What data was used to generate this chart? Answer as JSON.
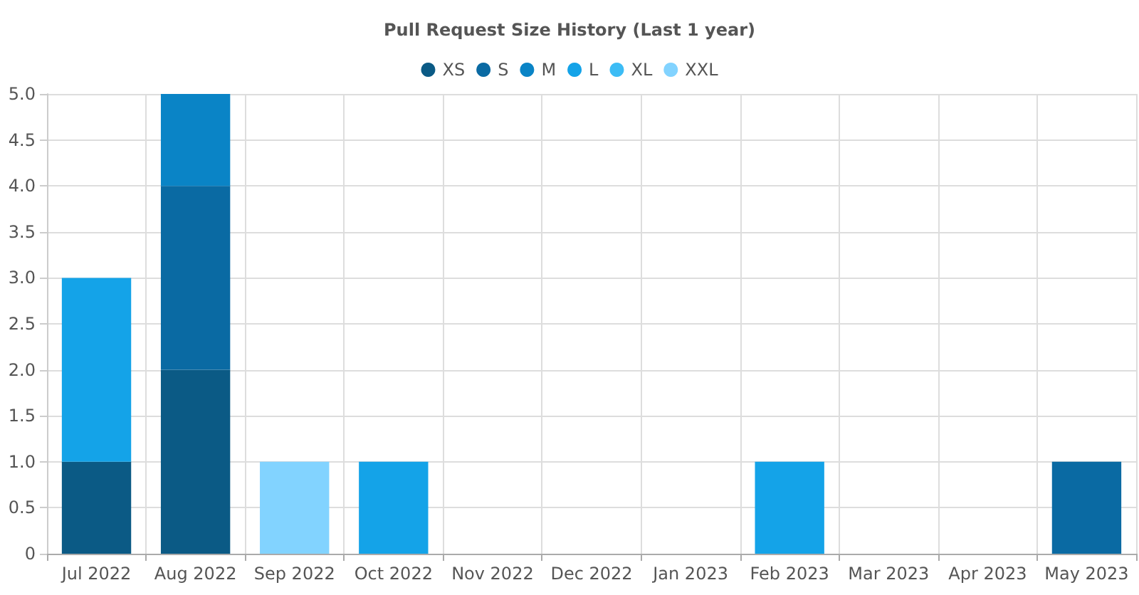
{
  "chart_data": {
    "type": "bar",
    "title": "Pull Request Size History (Last 1 year)",
    "stacked": true,
    "grid": true,
    "legend": "top",
    "categories": [
      "Jul 2022",
      "Aug 2022",
      "Sep 2022",
      "Oct 2022",
      "Nov 2022",
      "Dec 2022",
      "Jan 2023",
      "Feb 2023",
      "Mar 2023",
      "Apr 2023",
      "May 2023"
    ],
    "ylim": [
      0,
      5
    ],
    "yticks": [
      0,
      {
        "value": 0.5,
        "label": "0.5"
      },
      {
        "value": 1,
        "label": "1.0"
      },
      {
        "value": 1.5,
        "label": "1.5"
      },
      {
        "value": 2,
        "label": "2.0"
      },
      {
        "value": 2.5,
        "label": "2.5"
      },
      {
        "value": 3,
        "label": "3.0"
      },
      {
        "value": 3.5,
        "label": "3.5"
      },
      {
        "value": 4,
        "label": "4.0"
      },
      {
        "value": 4.5,
        "label": "4.5"
      },
      {
        "value": 5,
        "label": "5.0"
      }
    ],
    "series": [
      {
        "name": "XS",
        "color": "#0b5a85",
        "values": [
          1,
          2,
          0,
          0,
          0,
          0,
          0,
          0,
          0,
          0,
          0
        ]
      },
      {
        "name": "S",
        "color": "#0a6aa3",
        "values": [
          0,
          2,
          0,
          0,
          0,
          0,
          0,
          0,
          0,
          0,
          1
        ]
      },
      {
        "name": "M",
        "color": "#0a84c6",
        "values": [
          0,
          1,
          0,
          0,
          0,
          0,
          0,
          0,
          0,
          0,
          0
        ]
      },
      {
        "name": "L",
        "color": "#14a3e8",
        "values": [
          2,
          0,
          0,
          1,
          0,
          0,
          0,
          1,
          0,
          0,
          0
        ]
      },
      {
        "name": "XL",
        "color": "#3cbcf5",
        "values": [
          0,
          0,
          0,
          0,
          0,
          0,
          0,
          0,
          0,
          0,
          0
        ]
      },
      {
        "name": "XXL",
        "color": "#82d3ff",
        "values": [
          0,
          0,
          1,
          0,
          0,
          0,
          0,
          0,
          0,
          0,
          0
        ]
      }
    ]
  }
}
